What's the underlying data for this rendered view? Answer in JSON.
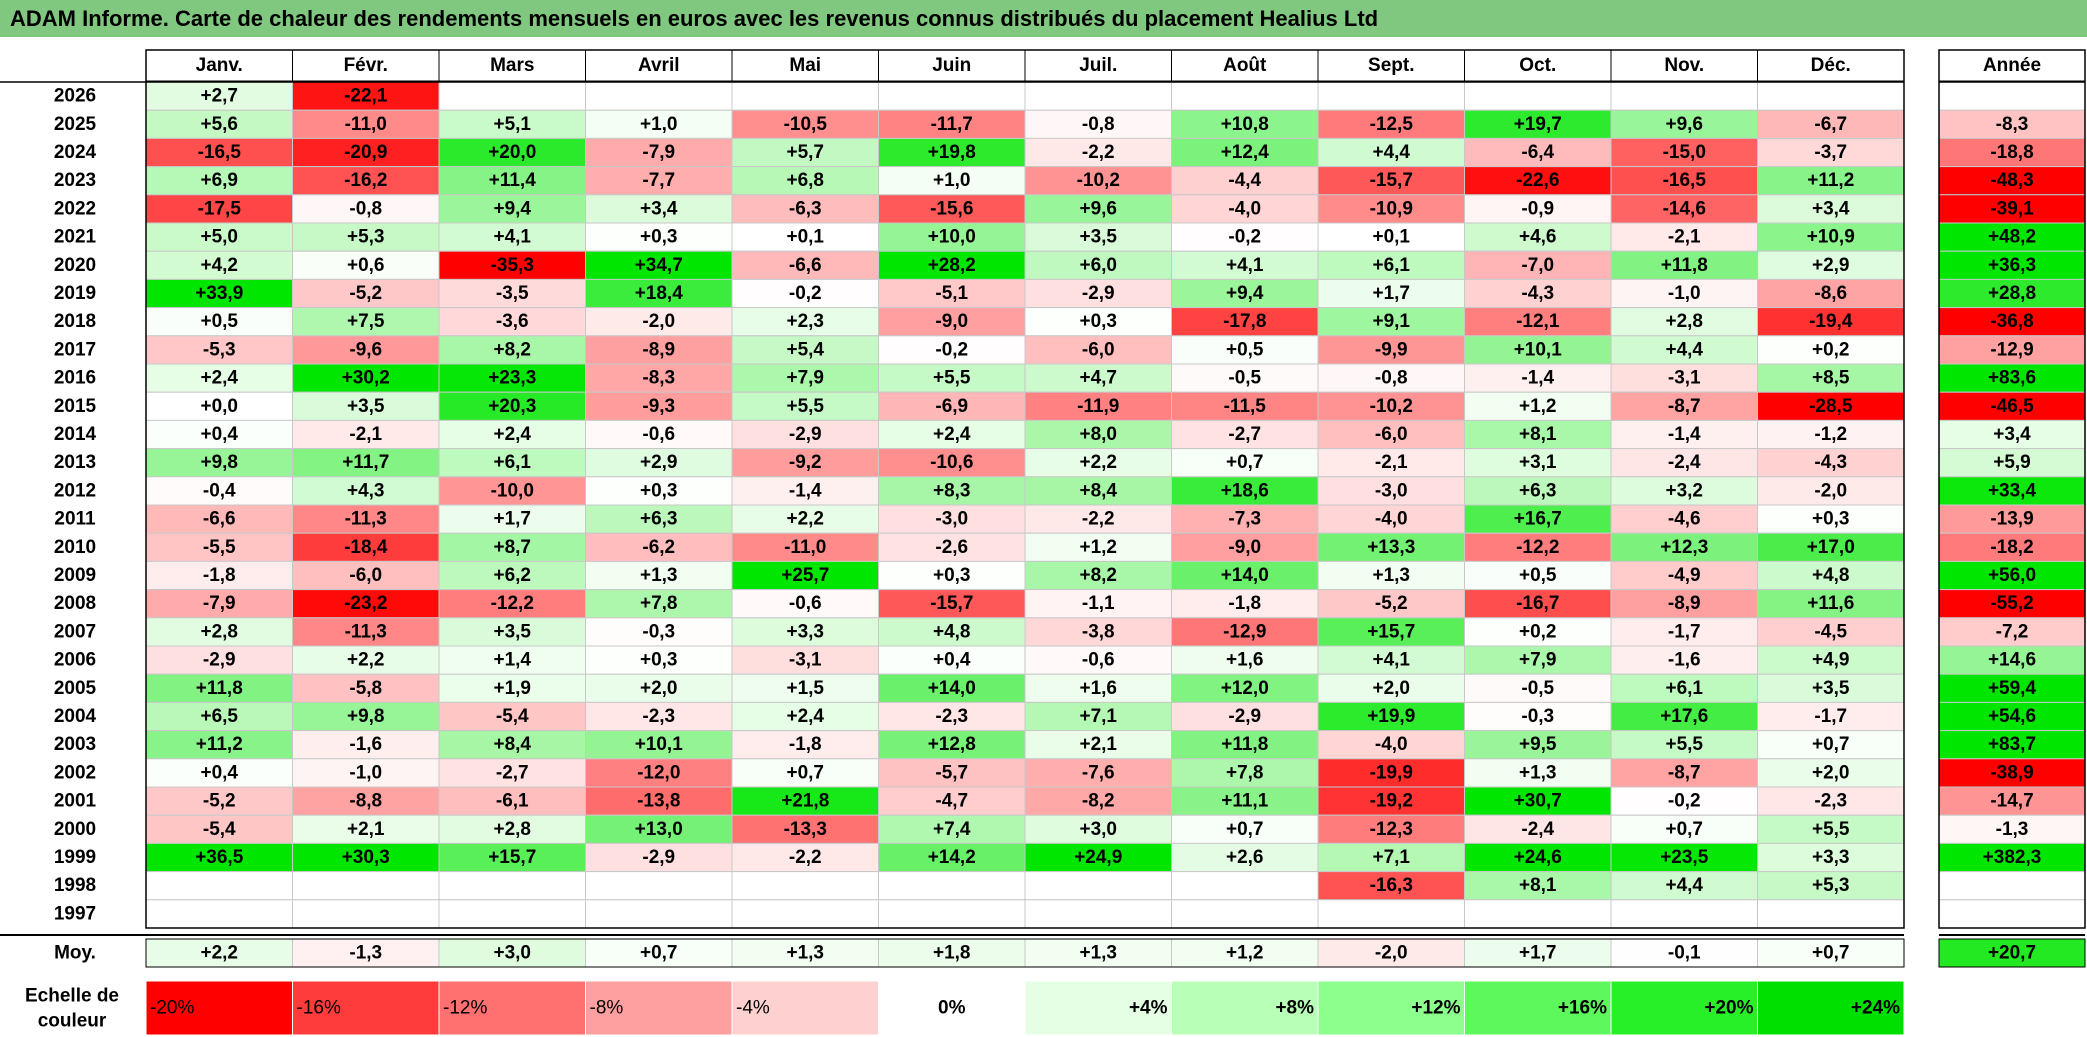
{
  "title": "ADAM Informe. Carte de chaleur des rendements mensuels en euros avec les revenus connus distribués du placement Healius Ltd",
  "chart_data": {
    "type": "heatmap",
    "months": [
      "Janv.",
      "Févr.",
      "Mars",
      "Avril",
      "Mai",
      "Juin",
      "Juil.",
      "Août",
      "Sept.",
      "Oct.",
      "Nov.",
      "Déc."
    ],
    "year_header": "Année",
    "rows": [
      {
        "year": "2026",
        "values": [
          "+2,7",
          "-22,1",
          "",
          "",
          "",
          "",
          "",
          "",
          "",
          "",
          "",
          ""
        ],
        "annual": ""
      },
      {
        "year": "2025",
        "values": [
          "+5,6",
          "-11,0",
          "+5,1",
          "+1,0",
          "-10,5",
          "-11,7",
          "-0,8",
          "+10,8",
          "-12,5",
          "+19,7",
          "+9,6",
          "-6,7"
        ],
        "annual": "-8,3"
      },
      {
        "year": "2024",
        "values": [
          "-16,5",
          "-20,9",
          "+20,0",
          "-7,9",
          "+5,7",
          "+19,8",
          "-2,2",
          "+12,4",
          "+4,4",
          "-6,4",
          "-15,0",
          "-3,7"
        ],
        "annual": "-18,8"
      },
      {
        "year": "2023",
        "values": [
          "+6,9",
          "-16,2",
          "+11,4",
          "-7,7",
          "+6,8",
          "+1,0",
          "-10,2",
          "-4,4",
          "-15,7",
          "-22,6",
          "-16,5",
          "+11,2"
        ],
        "annual": "-48,3"
      },
      {
        "year": "2022",
        "values": [
          "-17,5",
          "-0,8",
          "+9,4",
          "+3,4",
          "-6,3",
          "-15,6",
          "+9,6",
          "-4,0",
          "-10,9",
          "-0,9",
          "-14,6",
          "+3,4"
        ],
        "annual": "-39,1"
      },
      {
        "year": "2021",
        "values": [
          "+5,0",
          "+5,3",
          "+4,1",
          "+0,3",
          "+0,1",
          "+10,0",
          "+3,5",
          "-0,2",
          "+0,1",
          "+4,6",
          "-2,1",
          "+10,9"
        ],
        "annual": "+48,2"
      },
      {
        "year": "2020",
        "values": [
          "+4,2",
          "+0,6",
          "-35,3",
          "+34,7",
          "-6,6",
          "+28,2",
          "+6,0",
          "+4,1",
          "+6,1",
          "-7,0",
          "+11,8",
          "+2,9"
        ],
        "annual": "+36,3"
      },
      {
        "year": "2019",
        "values": [
          "+33,9",
          "-5,2",
          "-3,5",
          "+18,4",
          "-0,2",
          "-5,1",
          "-2,9",
          "+9,4",
          "+1,7",
          "-4,3",
          "-1,0",
          "-8,6"
        ],
        "annual": "+28,8"
      },
      {
        "year": "2018",
        "values": [
          "+0,5",
          "+7,5",
          "-3,6",
          "-2,0",
          "+2,3",
          "-9,0",
          "+0,3",
          "-17,8",
          "+9,1",
          "-12,1",
          "+2,8",
          "-19,4"
        ],
        "annual": "-36,8"
      },
      {
        "year": "2017",
        "values": [
          "-5,3",
          "-9,6",
          "+8,2",
          "-8,9",
          "+5,4",
          "-0,2",
          "-6,0",
          "+0,5",
          "-9,9",
          "+10,1",
          "+4,4",
          "+0,2"
        ],
        "annual": "-12,9"
      },
      {
        "year": "2016",
        "values": [
          "+2,4",
          "+30,2",
          "+23,3",
          "-8,3",
          "+7,9",
          "+5,5",
          "+4,7",
          "-0,5",
          "-0,8",
          "-1,4",
          "-3,1",
          "+8,5"
        ],
        "annual": "+83,6"
      },
      {
        "year": "2015",
        "values": [
          "+0,0",
          "+3,5",
          "+20,3",
          "-9,3",
          "+5,5",
          "-6,9",
          "-11,9",
          "-11,5",
          "-10,2",
          "+1,2",
          "-8,7",
          "-28,5"
        ],
        "annual": "-46,5"
      },
      {
        "year": "2014",
        "values": [
          "+0,4",
          "-2,1",
          "+2,4",
          "-0,6",
          "-2,9",
          "+2,4",
          "+8,0",
          "-2,7",
          "-6,0",
          "+8,1",
          "-1,4",
          "-1,2"
        ],
        "annual": "+3,4"
      },
      {
        "year": "2013",
        "values": [
          "+9,8",
          "+11,7",
          "+6,1",
          "+2,9",
          "-9,2",
          "-10,6",
          "+2,2",
          "+0,7",
          "-2,1",
          "+3,1",
          "-2,4",
          "-4,3"
        ],
        "annual": "+5,9"
      },
      {
        "year": "2012",
        "values": [
          "-0,4",
          "+4,3",
          "-10,0",
          "+0,3",
          "-1,4",
          "+8,3",
          "+8,4",
          "+18,6",
          "-3,0",
          "+6,3",
          "+3,2",
          "-2,0"
        ],
        "annual": "+33,4"
      },
      {
        "year": "2011",
        "values": [
          "-6,6",
          "-11,3",
          "+1,7",
          "+6,3",
          "+2,2",
          "-3,0",
          "-2,2",
          "-7,3",
          "-4,0",
          "+16,7",
          "-4,6",
          "+0,3"
        ],
        "annual": "-13,9"
      },
      {
        "year": "2010",
        "values": [
          "-5,5",
          "-18,4",
          "+8,7",
          "-6,2",
          "-11,0",
          "-2,6",
          "+1,2",
          "-9,0",
          "+13,3",
          "-12,2",
          "+12,3",
          "+17,0"
        ],
        "annual": "-18,2"
      },
      {
        "year": "2009",
        "values": [
          "-1,8",
          "-6,0",
          "+6,2",
          "+1,3",
          "+25,7",
          "+0,3",
          "+8,2",
          "+14,0",
          "+1,3",
          "+0,5",
          "-4,9",
          "+4,8"
        ],
        "annual": "+56,0"
      },
      {
        "year": "2008",
        "values": [
          "-7,9",
          "-23,2",
          "-12,2",
          "+7,8",
          "-0,6",
          "-15,7",
          "-1,1",
          "-1,8",
          "-5,2",
          "-16,7",
          "-8,9",
          "+11,6"
        ],
        "annual": "-55,2"
      },
      {
        "year": "2007",
        "values": [
          "+2,8",
          "-11,3",
          "+3,5",
          "-0,3",
          "+3,3",
          "+4,8",
          "-3,8",
          "-12,9",
          "+15,7",
          "+0,2",
          "-1,7",
          "-4,5"
        ],
        "annual": "-7,2"
      },
      {
        "year": "2006",
        "values": [
          "-2,9",
          "+2,2",
          "+1,4",
          "+0,3",
          "-3,1",
          "+0,4",
          "-0,6",
          "+1,6",
          "+4,1",
          "+7,9",
          "-1,6",
          "+4,9"
        ],
        "annual": "+14,6"
      },
      {
        "year": "2005",
        "values": [
          "+11,8",
          "-5,8",
          "+1,9",
          "+2,0",
          "+1,5",
          "+14,0",
          "+1,6",
          "+12,0",
          "+2,0",
          "-0,5",
          "+6,1",
          "+3,5"
        ],
        "annual": "+59,4"
      },
      {
        "year": "2004",
        "values": [
          "+6,5",
          "+9,8",
          "-5,4",
          "-2,3",
          "+2,4",
          "-2,3",
          "+7,1",
          "-2,9",
          "+19,9",
          "-0,3",
          "+17,6",
          "-1,7"
        ],
        "annual": "+54,6"
      },
      {
        "year": "2003",
        "values": [
          "+11,2",
          "-1,6",
          "+8,4",
          "+10,1",
          "-1,8",
          "+12,8",
          "+2,1",
          "+11,8",
          "-4,0",
          "+9,5",
          "+5,5",
          "+0,7"
        ],
        "annual": "+83,7"
      },
      {
        "year": "2002",
        "values": [
          "+0,4",
          "-1,0",
          "-2,7",
          "-12,0",
          "+0,7",
          "-5,7",
          "-7,6",
          "+7,8",
          "-19,9",
          "+1,3",
          "-8,7",
          "+2,0"
        ],
        "annual": "-38,9"
      },
      {
        "year": "2001",
        "values": [
          "-5,2",
          "-8,8",
          "-6,1",
          "-13,8",
          "+21,8",
          "-4,7",
          "-8,2",
          "+11,1",
          "-19,2",
          "+30,7",
          "-0,2",
          "-2,3"
        ],
        "annual": "-14,7"
      },
      {
        "year": "2000",
        "values": [
          "-5,4",
          "+2,1",
          "+2,8",
          "+13,0",
          "-13,3",
          "+7,4",
          "+3,0",
          "+0,7",
          "-12,3",
          "-2,4",
          "+0,7",
          "+5,5"
        ],
        "annual": "-1,3"
      },
      {
        "year": "1999",
        "values": [
          "+36,5",
          "+30,3",
          "+15,7",
          "-2,9",
          "-2,2",
          "+14,2",
          "+24,9",
          "+2,6",
          "+7,1",
          "+24,6",
          "+23,5",
          "+3,3"
        ],
        "annual": "+382,3"
      },
      {
        "year": "1998",
        "values": [
          "",
          "",
          "",
          "",
          "",
          "",
          "",
          "",
          "-16,3",
          "+8,1",
          "+4,4",
          "+5,3"
        ],
        "annual": ""
      },
      {
        "year": "1997",
        "values": [
          "",
          "",
          "",
          "",
          "",
          "",
          "",
          "",
          "",
          "",
          "",
          ""
        ],
        "annual": ""
      }
    ],
    "average": {
      "label": "Moy.",
      "values": [
        "+2,2",
        "-1,3",
        "+3,0",
        "+0,7",
        "+1,3",
        "+1,8",
        "+1,3",
        "+1,2",
        "-2,0",
        "+1,7",
        "-0,1",
        "+0,7"
      ],
      "annual": "+20,7"
    },
    "scale": {
      "label_line1": "Echelle de",
      "label_line2": "couleur",
      "steps": [
        "-20%",
        "-16%",
        "-12%",
        "-8%",
        "-4%",
        "0%",
        "+4%",
        "+8%",
        "+12%",
        "+16%",
        "+20%",
        "+24%"
      ],
      "step_values": [
        -20,
        -16,
        -12,
        -8,
        -4,
        0,
        4,
        8,
        12,
        16,
        20,
        24
      ],
      "colors": [
        "#ff0000",
        "#ff3c3c",
        "#ff7070",
        "#ffa0a0",
        "#ffd0d0",
        "#ffffff",
        "#e4ffe4",
        "#b8ffb8",
        "#8cff8c",
        "#5cf85c",
        "#28f028",
        "#00e000"
      ]
    },
    "colors": {
      "title_bg": "#80c880",
      "grid_line": "#c8c8c8",
      "negative_max": "#ff0000",
      "positive_max": "#00e600",
      "neutral": "#ffffff"
    }
  }
}
